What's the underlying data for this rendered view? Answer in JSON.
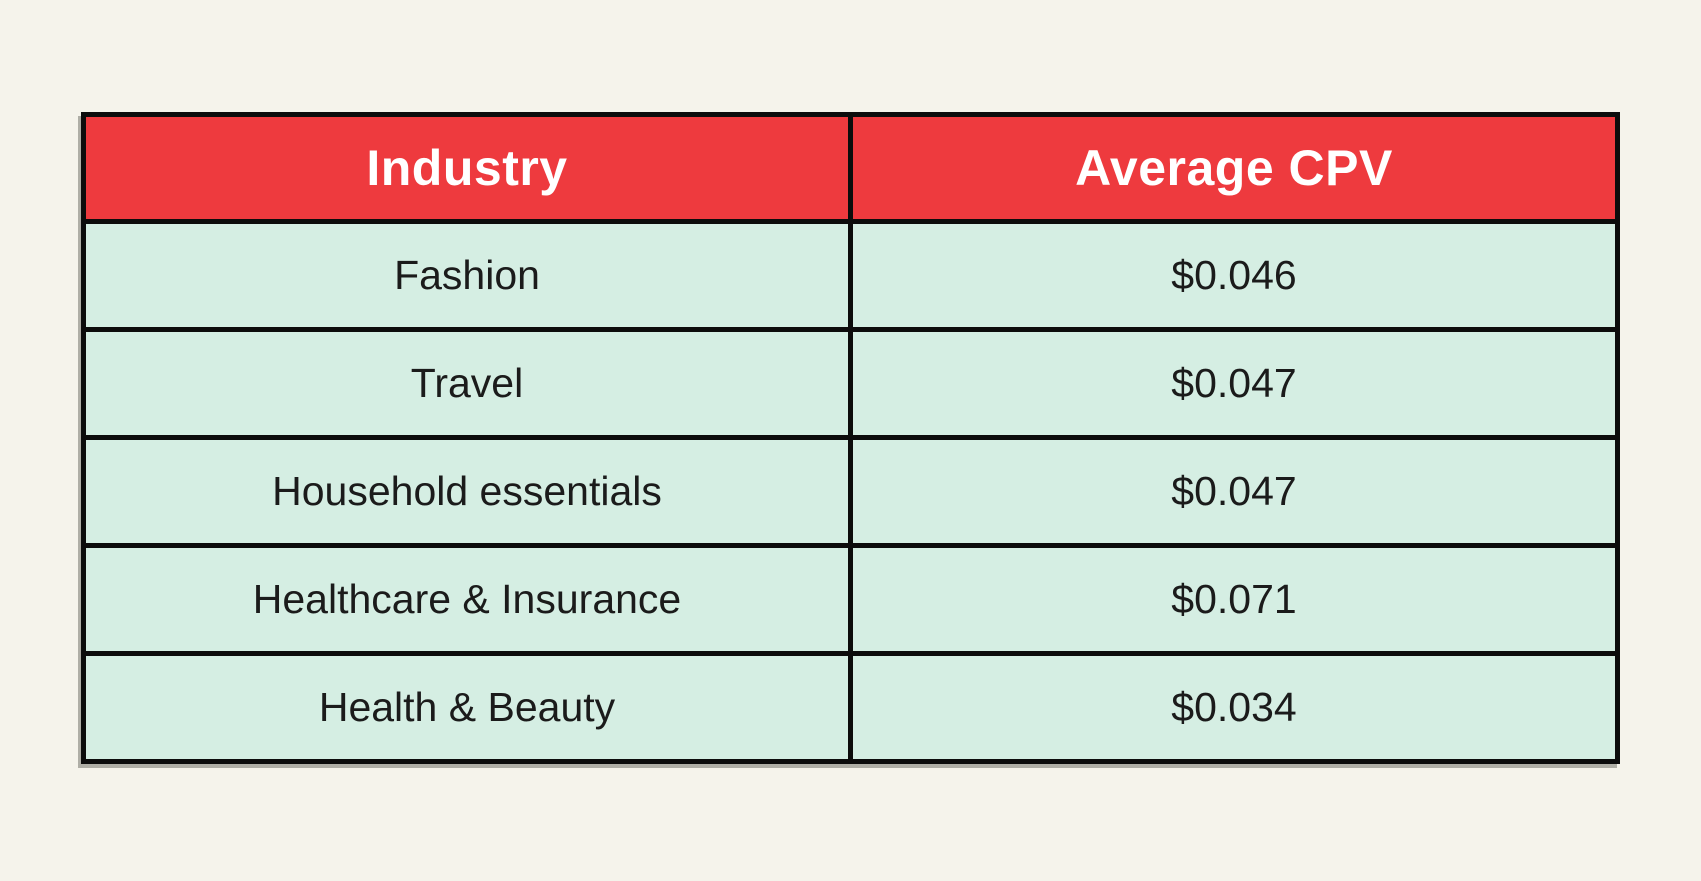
{
  "colors": {
    "background": "#F5F3EB",
    "header_bg": "#EE3A3E",
    "header_text": "#FFFFFF",
    "row_bg": "#D5EEE3",
    "row_text": "#1B1B1B",
    "border": "#0C0C0C"
  },
  "table": {
    "columns": [
      "Industry",
      "Average CPV"
    ]
  },
  "chart_data": {
    "type": "table",
    "title": "",
    "columns": [
      "Industry",
      "Average CPV"
    ],
    "rows": [
      [
        "Fashion",
        "$0.046"
      ],
      [
        "Travel",
        "$0.047"
      ],
      [
        "Household essentials",
        "$0.047"
      ],
      [
        "Healthcare & Insurance",
        "$0.071"
      ],
      [
        "Health & Beauty",
        "$0.034"
      ]
    ],
    "values_numeric": {
      "categories": [
        "Fashion",
        "Travel",
        "Household essentials",
        "Healthcare & Insurance",
        "Health & Beauty"
      ],
      "average_cpv_usd": [
        0.046,
        0.047,
        0.047,
        0.071,
        0.034
      ]
    }
  }
}
